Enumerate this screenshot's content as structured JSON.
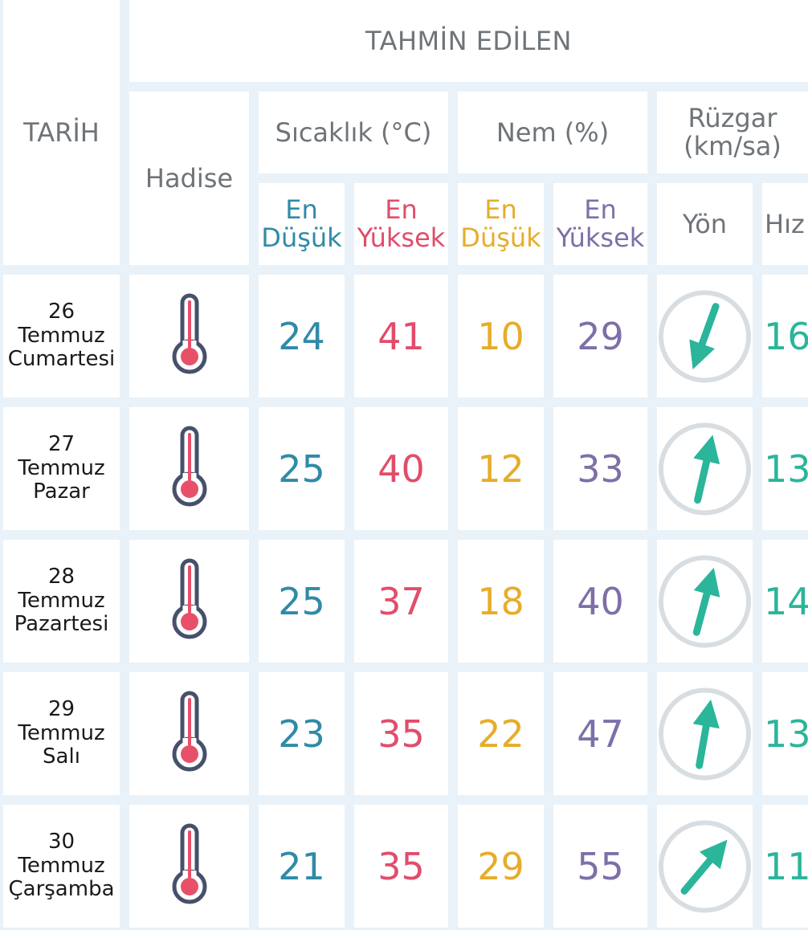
{
  "colors": {
    "background": "#e9f2f8",
    "header_text": "#6f7479",
    "temp_low": "#2f8ba7",
    "temp_high": "#e14d6b",
    "hum_low": "#e6ad2b",
    "hum_high": "#7e6fa8",
    "wind_arrow": "#2bb59a",
    "wind_ring": "#d8dde1",
    "thermo_outline": "#47506b",
    "thermo_fill": "#e8506a"
  },
  "header": {
    "tarih": "TARİH",
    "tahmin": "TAHMİN EDİLEN",
    "hadise": "Hadise",
    "sicaklik": "Sıcaklık (°C)",
    "nem": "Nem (%)",
    "ruzgar_line1": "Rüzgar",
    "ruzgar_line2": "(km/sa)",
    "sub": {
      "temp_low_1": "En",
      "temp_low_2": "Düşük",
      "temp_high_1": "En",
      "temp_high_2": "Yüksek",
      "hum_low_1": "En",
      "hum_low_2": "Düşük",
      "hum_high_1": "En",
      "hum_high_2": "Yüksek",
      "yon": "Yön",
      "hiz": "Hız"
    }
  },
  "rows": [
    {
      "day": "26",
      "month": "Temmuz",
      "weekday": "Cumartesi",
      "hadise_icon": "thermometer-hot-icon",
      "temp_low": "24",
      "temp_high": "41",
      "hum_low": "10",
      "hum_high": "29",
      "wind_direction_deg": 200,
      "wind_speed": "16"
    },
    {
      "day": "27",
      "month": "Temmuz",
      "weekday": "Pazar",
      "hadise_icon": "thermometer-hot-icon",
      "temp_low": "25",
      "temp_high": "40",
      "hum_low": "12",
      "hum_high": "33",
      "wind_direction_deg": 13,
      "wind_speed": "13"
    },
    {
      "day": "28",
      "month": "Temmuz",
      "weekday": "Pazartesi",
      "hadise_icon": "thermometer-hot-icon",
      "temp_low": "25",
      "temp_high": "37",
      "hum_low": "18",
      "hum_high": "40",
      "wind_direction_deg": 15,
      "wind_speed": "14"
    },
    {
      "day": "29",
      "month": "Temmuz",
      "weekday": "Salı",
      "hadise_icon": "thermometer-hot-icon",
      "temp_low": "23",
      "temp_high": "35",
      "hum_low": "22",
      "hum_high": "47",
      "wind_direction_deg": 10,
      "wind_speed": "13"
    },
    {
      "day": "30",
      "month": "Temmuz",
      "weekday": "Çarşamba",
      "hadise_icon": "thermometer-hot-icon",
      "temp_low": "21",
      "temp_high": "35",
      "hum_low": "29",
      "hum_high": "55",
      "wind_direction_deg": 40,
      "wind_speed": "11"
    }
  ]
}
